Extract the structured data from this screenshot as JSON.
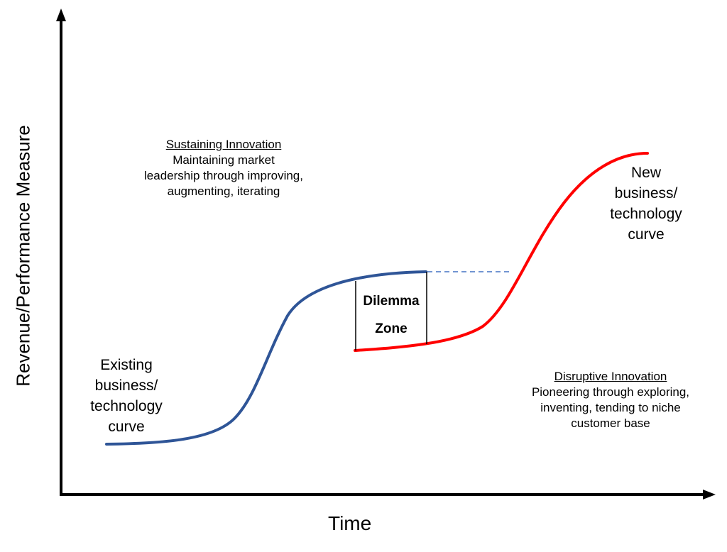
{
  "axes": {
    "y_label": "Revenue/Performance Measure",
    "x_label": "Time"
  },
  "existing_curve": {
    "label_lines": [
      "Existing",
      "business/",
      "technology",
      "curve"
    ],
    "color": "#2F5597"
  },
  "new_curve": {
    "label_lines": [
      "New",
      "business/",
      "technology",
      "curve"
    ],
    "color": "#FF0000"
  },
  "dilemma_zone": {
    "lines": [
      "Dilemma",
      "Zone"
    ]
  },
  "sustaining": {
    "title": "Sustaining Innovation",
    "lines": [
      "Maintaining market",
      "leadership through improving,",
      "augmenting, iterating"
    ]
  },
  "disruptive": {
    "title": "Disruptive Innovation",
    "lines": [
      "Pioneering through exploring,",
      "inventing, tending to niche",
      "customer base"
    ]
  }
}
